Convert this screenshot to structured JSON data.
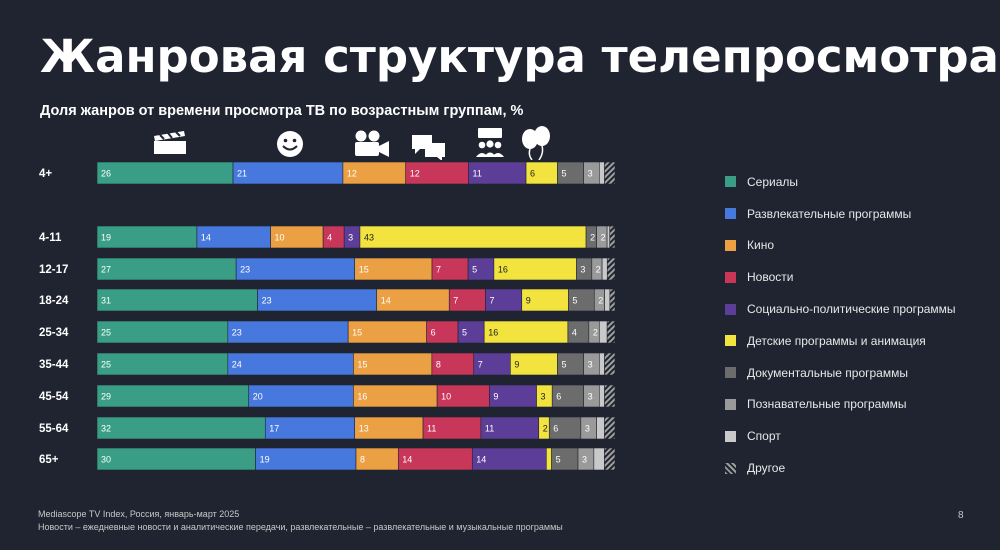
{
  "title": "Жанровая структура телепросмотра",
  "subtitle": "Доля жанров от времени просмотра ТВ по возрастным группам, %",
  "footer": {
    "source": "Mediascope TV Index, Россия, январь-март 2025",
    "note": "Новости – ежедневные новости и аналитические передачи, развлекательные – развлекательные и музыкальные программы",
    "page": "8"
  },
  "icons": [
    "clapperboard-icon",
    "smiley-icon",
    "movie-camera-icon",
    "speech-bubbles-icon",
    "audience-icon",
    "balloons-icon"
  ],
  "legend": [
    {
      "label": "Сериалы",
      "color": "#3a9e86"
    },
    {
      "label": "Развлекательные программы",
      "color": "#4778de"
    },
    {
      "label": "Кино",
      "color": "#eba043"
    },
    {
      "label": "Новости",
      "color": "#c8365a"
    },
    {
      "label": "Социально-политические программы",
      "color": "#5c3e98"
    },
    {
      "label": "Детские программы и анимация",
      "color": "#f2e33e"
    },
    {
      "label": "Документальные программы",
      "color": "#6c6c6c"
    },
    {
      "label": "Познавательные программы",
      "color": "#9a9a9a"
    },
    {
      "label": "Спорт",
      "color": "#c9c9c9"
    },
    {
      "label": "Другое",
      "color": "hatch"
    }
  ],
  "chart_data": {
    "type": "bar",
    "orientation": "horizontal",
    "stacked": true,
    "unit": "%",
    "categories": [
      "4+",
      "4-11",
      "12-17",
      "18-24",
      "25-34",
      "35-44",
      "45-54",
      "55-64",
      "65+"
    ],
    "series": [
      {
        "name": "Сериалы",
        "values": [
          26,
          19,
          27,
          31,
          25,
          25,
          29,
          32,
          30
        ]
      },
      {
        "name": "Развлекательные программы",
        "values": [
          21,
          14,
          23,
          23,
          23,
          24,
          20,
          17,
          19
        ]
      },
      {
        "name": "Кино",
        "values": [
          12,
          10,
          15,
          14,
          15,
          15,
          16,
          13,
          8
        ]
      },
      {
        "name": "Новости",
        "values": [
          12,
          4,
          7,
          7,
          6,
          8,
          10,
          11,
          14
        ]
      },
      {
        "name": "Социально-политические программы",
        "values": [
          11,
          3,
          5,
          7,
          5,
          7,
          9,
          11,
          14
        ]
      },
      {
        "name": "Детские программы и анимация",
        "values": [
          6,
          43,
          16,
          9,
          16,
          9,
          3,
          2,
          1
        ]
      },
      {
        "name": "Документальные программы",
        "values": [
          5,
          2,
          3,
          5,
          4,
          5,
          6,
          6,
          5
        ]
      },
      {
        "name": "Познавательные программы",
        "values": [
          3,
          2,
          2,
          2,
          2,
          3,
          3,
          3,
          3
        ]
      },
      {
        "name": "Спорт",
        "values": [
          1,
          0.5,
          1,
          1,
          1.5,
          1,
          1,
          1.5,
          2
        ]
      },
      {
        "name": "Другое",
        "values": [
          2,
          1,
          1.5,
          1,
          1.5,
          2,
          2,
          2,
          2
        ]
      }
    ],
    "legend_position": "right",
    "grid": false
  }
}
